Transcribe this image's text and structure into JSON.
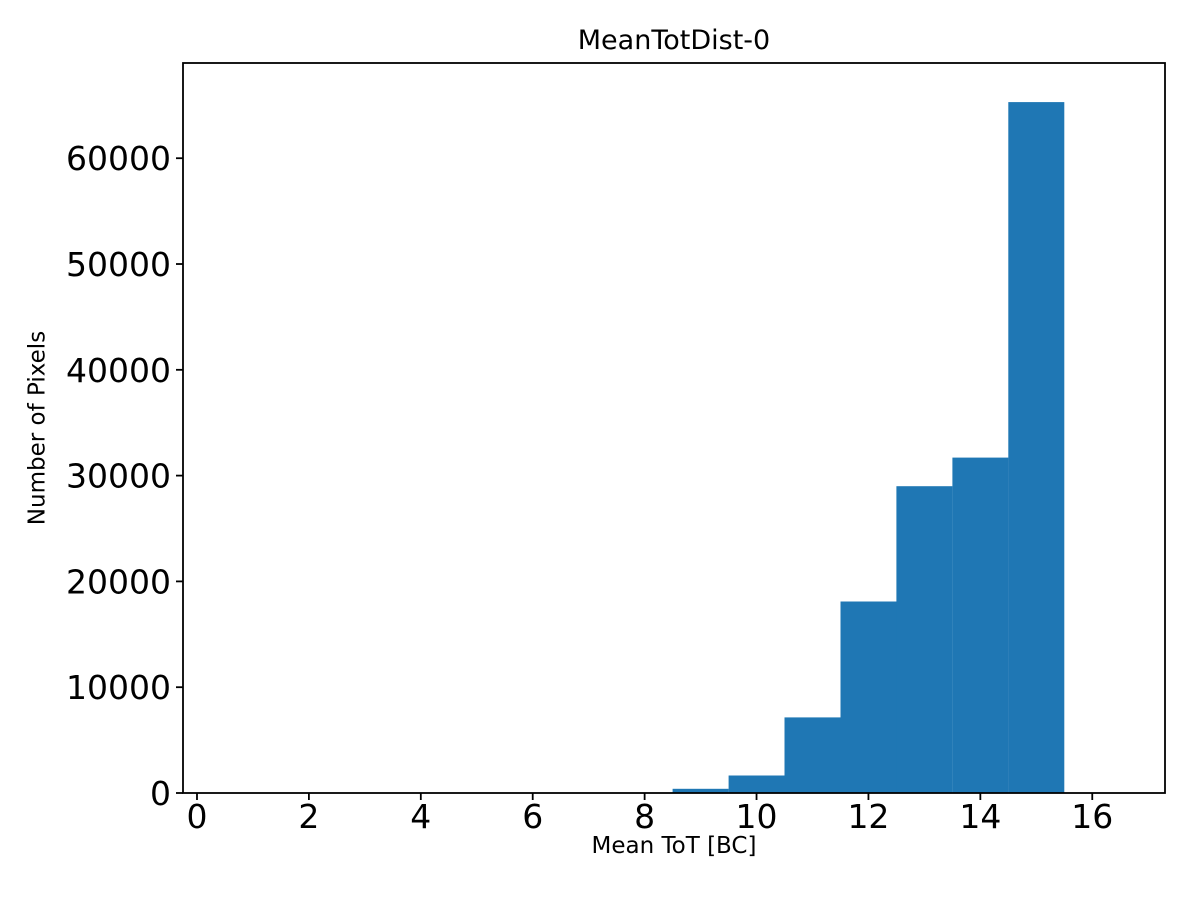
{
  "figure": {
    "background": "#ffffff",
    "text_color": "#000000"
  },
  "chart_data": {
    "type": "bar",
    "subtype": "histogram",
    "title": "MeanTotDist-0",
    "xlabel": "Mean ToT [BC]",
    "ylabel": "Number of Pixels",
    "bar_color": "#1f77b4",
    "bin_edges": [
      8.5,
      9.5,
      10.5,
      11.5,
      12.5,
      13.5,
      14.5,
      15.5
    ],
    "counts": [
      400,
      1650,
      7150,
      18100,
      29000,
      31700,
      65300
    ],
    "xticks": [
      0,
      2,
      4,
      6,
      8,
      10,
      12,
      14,
      16
    ],
    "yticks": [
      0,
      10000,
      20000,
      30000,
      40000,
      50000,
      60000
    ],
    "xlim": [
      -0.25,
      17.3
    ],
    "ylim": [
      0,
      69000
    ],
    "grid": false,
    "legend_position": "none"
  }
}
